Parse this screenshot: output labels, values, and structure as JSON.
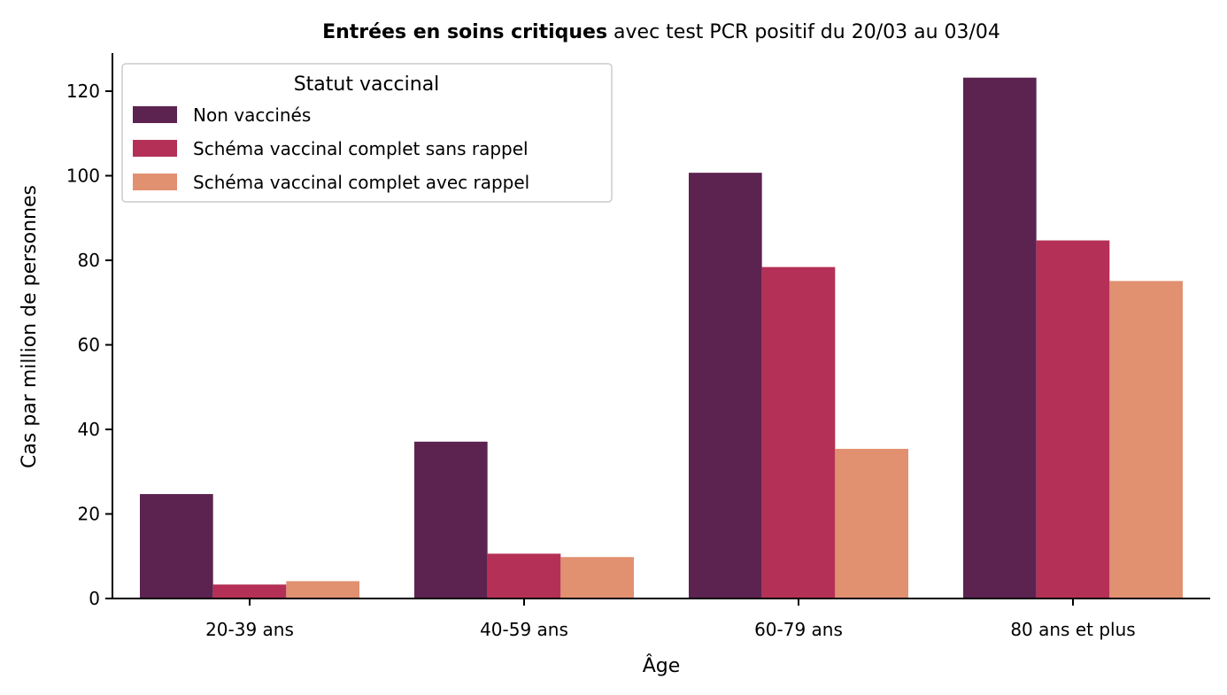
{
  "chart_data": {
    "type": "bar",
    "title_bold": "Entrées en soins critiques",
    "title_rest": " avec test PCR positif du 20/03 au 03/04",
    "xlabel": "Âge",
    "ylabel": "Cas par million de personnes",
    "categories": [
      "20-39 ans",
      "40-59 ans",
      "60-79 ans",
      "80 ans et plus"
    ],
    "ylim": [
      0,
      129
    ],
    "yticks": [
      0,
      20,
      40,
      60,
      80,
      100,
      120
    ],
    "grid": false,
    "legend": {
      "title": "Statut vaccinal",
      "placement": "top-left"
    },
    "series": [
      {
        "name": "Non vaccinés",
        "color": "#5c2350",
        "values": [
          24.7,
          37.1,
          100.7,
          123.2
        ]
      },
      {
        "name": "Schéma vaccinal complet sans rappel",
        "color": "#b53056",
        "values": [
          3.3,
          10.6,
          78.4,
          84.7
        ]
      },
      {
        "name": "Schéma vaccinal complet avec rappel",
        "color": "#e19070",
        "values": [
          4.1,
          9.8,
          35.4,
          75.1
        ]
      }
    ]
  }
}
